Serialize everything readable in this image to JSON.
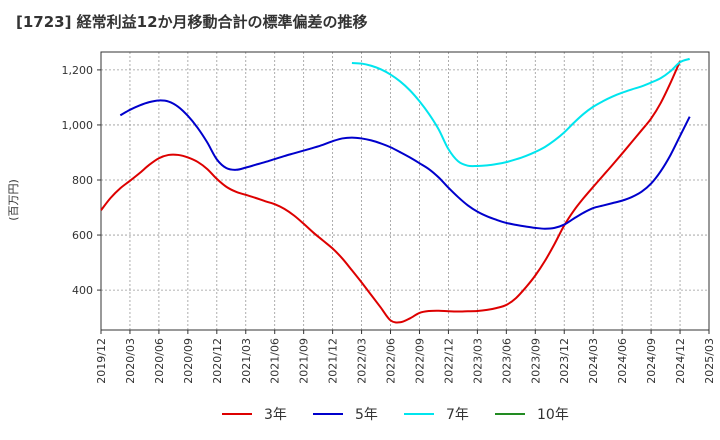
{
  "chart_data": {
    "type": "line",
    "title": "[1723]  経常利益12か月移動合計の標準偏差の推移",
    "ylabel": "(百万円)",
    "xlabel": "",
    "ylim": [
      255,
      1265
    ],
    "yticks": [
      400,
      600,
      800,
      1000,
      1200
    ],
    "ytick_labels": [
      "400",
      "600",
      "800",
      "1,000",
      "1,200"
    ],
    "xtick_labels": [
      "2019/12",
      "2020/03",
      "2020/06",
      "2020/09",
      "2020/12",
      "2021/03",
      "2021/06",
      "2021/09",
      "2021/12",
      "2022/03",
      "2022/06",
      "2022/09",
      "2022/12",
      "2023/03",
      "2023/06",
      "2023/09",
      "2023/12",
      "2024/03",
      "2024/06",
      "2024/09",
      "2024/12",
      "2025/03"
    ],
    "grid": true,
    "legend_position": "bottom",
    "series": [
      {
        "name": "3年",
        "color": "#dd0000",
        "values": [
          {
            "x": "2019/12",
            "y": 690
          },
          {
            "x": "2020/01",
            "y": 735
          },
          {
            "x": "2020/02",
            "y": 770
          },
          {
            "x": "2020/03",
            "y": 797
          },
          {
            "x": "2020/04",
            "y": 825
          },
          {
            "x": "2020/05",
            "y": 855
          },
          {
            "x": "2020/06",
            "y": 879
          },
          {
            "x": "2020/07",
            "y": 891
          },
          {
            "x": "2020/08",
            "y": 891
          },
          {
            "x": "2020/09",
            "y": 882
          },
          {
            "x": "2020/10",
            "y": 866
          },
          {
            "x": "2020/11",
            "y": 840
          },
          {
            "x": "2020/12",
            "y": 804
          },
          {
            "x": "2021/01",
            "y": 775
          },
          {
            "x": "2021/02",
            "y": 757
          },
          {
            "x": "2021/03",
            "y": 746
          },
          {
            "x": "2021/04",
            "y": 735
          },
          {
            "x": "2021/05",
            "y": 723
          },
          {
            "x": "2021/06",
            "y": 712
          },
          {
            "x": "2021/07",
            "y": 695
          },
          {
            "x": "2021/08",
            "y": 671
          },
          {
            "x": "2021/09",
            "y": 641
          },
          {
            "x": "2021/10",
            "y": 609
          },
          {
            "x": "2021/11",
            "y": 580
          },
          {
            "x": "2021/12",
            "y": 551
          },
          {
            "x": "2022/01",
            "y": 515
          },
          {
            "x": "2022/02",
            "y": 472
          },
          {
            "x": "2022/03",
            "y": 428
          },
          {
            "x": "2022/04",
            "y": 382
          },
          {
            "x": "2022/05",
            "y": 336
          },
          {
            "x": "2022/06",
            "y": 290
          },
          {
            "x": "2022/07",
            "y": 283
          },
          {
            "x": "2022/08",
            "y": 297
          },
          {
            "x": "2022/09",
            "y": 317
          },
          {
            "x": "2022/10",
            "y": 324
          },
          {
            "x": "2022/11",
            "y": 325
          },
          {
            "x": "2022/12",
            "y": 323
          },
          {
            "x": "2023/01",
            "y": 322
          },
          {
            "x": "2023/02",
            "y": 323
          },
          {
            "x": "2023/03",
            "y": 324
          },
          {
            "x": "2023/04",
            "y": 328
          },
          {
            "x": "2023/05",
            "y": 335
          },
          {
            "x": "2023/06",
            "y": 346
          },
          {
            "x": "2023/07",
            "y": 371
          },
          {
            "x": "2023/08",
            "y": 409
          },
          {
            "x": "2023/09",
            "y": 453
          },
          {
            "x": "2023/10",
            "y": 506
          },
          {
            "x": "2023/11",
            "y": 568
          },
          {
            "x": "2023/12",
            "y": 635
          },
          {
            "x": "2024/01",
            "y": 689
          },
          {
            "x": "2024/02",
            "y": 734
          },
          {
            "x": "2024/03",
            "y": 775
          },
          {
            "x": "2024/04",
            "y": 815
          },
          {
            "x": "2024/05",
            "y": 855
          },
          {
            "x": "2024/06",
            "y": 896
          },
          {
            "x": "2024/07",
            "y": 938
          },
          {
            "x": "2024/08",
            "y": 980
          },
          {
            "x": "2024/09",
            "y": 1023
          },
          {
            "x": "2024/10",
            "y": 1080
          },
          {
            "x": "2024/11",
            "y": 1152
          },
          {
            "x": "2024/12",
            "y": 1232
          }
        ]
      },
      {
        "name": "5年",
        "color": "#0000cc",
        "values": [
          {
            "x": "2020/02",
            "y": 1035
          },
          {
            "x": "2020/03",
            "y": 1055
          },
          {
            "x": "2020/04",
            "y": 1071
          },
          {
            "x": "2020/05",
            "y": 1083
          },
          {
            "x": "2020/06",
            "y": 1089
          },
          {
            "x": "2020/07",
            "y": 1085
          },
          {
            "x": "2020/08",
            "y": 1066
          },
          {
            "x": "2020/09",
            "y": 1033
          },
          {
            "x": "2020/10",
            "y": 990
          },
          {
            "x": "2020/11",
            "y": 937
          },
          {
            "x": "2020/12",
            "y": 875
          },
          {
            "x": "2021/01",
            "y": 843
          },
          {
            "x": "2021/02",
            "y": 837
          },
          {
            "x": "2021/03",
            "y": 845
          },
          {
            "x": "2021/04",
            "y": 855
          },
          {
            "x": "2021/05",
            "y": 865
          },
          {
            "x": "2021/06",
            "y": 876
          },
          {
            "x": "2021/07",
            "y": 887
          },
          {
            "x": "2021/08",
            "y": 897
          },
          {
            "x": "2021/09",
            "y": 907
          },
          {
            "x": "2021/10",
            "y": 917
          },
          {
            "x": "2021/11",
            "y": 928
          },
          {
            "x": "2021/12",
            "y": 941
          },
          {
            "x": "2022/01",
            "y": 951
          },
          {
            "x": "2022/02",
            "y": 954
          },
          {
            "x": "2022/03",
            "y": 951
          },
          {
            "x": "2022/04",
            "y": 944
          },
          {
            "x": "2022/05",
            "y": 933
          },
          {
            "x": "2022/06",
            "y": 919
          },
          {
            "x": "2022/07",
            "y": 901
          },
          {
            "x": "2022/08",
            "y": 882
          },
          {
            "x": "2022/09",
            "y": 861
          },
          {
            "x": "2022/10",
            "y": 839
          },
          {
            "x": "2022/11",
            "y": 809
          },
          {
            "x": "2022/12",
            "y": 772
          },
          {
            "x": "2023/01",
            "y": 738
          },
          {
            "x": "2023/02",
            "y": 708
          },
          {
            "x": "2023/03",
            "y": 685
          },
          {
            "x": "2023/04",
            "y": 668
          },
          {
            "x": "2023/05",
            "y": 655
          },
          {
            "x": "2023/06",
            "y": 644
          },
          {
            "x": "2023/07",
            "y": 637
          },
          {
            "x": "2023/08",
            "y": 631
          },
          {
            "x": "2023/09",
            "y": 626
          },
          {
            "x": "2023/10",
            "y": 623
          },
          {
            "x": "2023/11",
            "y": 626
          },
          {
            "x": "2023/12",
            "y": 638
          },
          {
            "x": "2024/01",
            "y": 660
          },
          {
            "x": "2024/02",
            "y": 681
          },
          {
            "x": "2024/03",
            "y": 698
          },
          {
            "x": "2024/04",
            "y": 707
          },
          {
            "x": "2024/05",
            "y": 716
          },
          {
            "x": "2024/06",
            "y": 725
          },
          {
            "x": "2024/07",
            "y": 738
          },
          {
            "x": "2024/08",
            "y": 757
          },
          {
            "x": "2024/09",
            "y": 787
          },
          {
            "x": "2024/10",
            "y": 832
          },
          {
            "x": "2024/11",
            "y": 890
          },
          {
            "x": "2024/12",
            "y": 960
          },
          {
            "x": "2025/01",
            "y": 1030
          }
        ]
      },
      {
        "name": "7年",
        "color": "#00e5ee",
        "values": [
          {
            "x": "2022/02",
            "y": 1225
          },
          {
            "x": "2022/03",
            "y": 1223
          },
          {
            "x": "2022/04",
            "y": 1215
          },
          {
            "x": "2022/05",
            "y": 1202
          },
          {
            "x": "2022/06",
            "y": 1183
          },
          {
            "x": "2022/07",
            "y": 1158
          },
          {
            "x": "2022/08",
            "y": 1126
          },
          {
            "x": "2022/09",
            "y": 1086
          },
          {
            "x": "2022/10",
            "y": 1039
          },
          {
            "x": "2022/11",
            "y": 983
          },
          {
            "x": "2022/12",
            "y": 912
          },
          {
            "x": "2023/01",
            "y": 868
          },
          {
            "x": "2023/02",
            "y": 852
          },
          {
            "x": "2023/03",
            "y": 851
          },
          {
            "x": "2023/04",
            "y": 853
          },
          {
            "x": "2023/05",
            "y": 858
          },
          {
            "x": "2023/06",
            "y": 865
          },
          {
            "x": "2023/07",
            "y": 875
          },
          {
            "x": "2023/08",
            "y": 887
          },
          {
            "x": "2023/09",
            "y": 902
          },
          {
            "x": "2023/10",
            "y": 920
          },
          {
            "x": "2023/11",
            "y": 944
          },
          {
            "x": "2023/12",
            "y": 973
          },
          {
            "x": "2024/01",
            "y": 1008
          },
          {
            "x": "2024/02",
            "y": 1040
          },
          {
            "x": "2024/03",
            "y": 1066
          },
          {
            "x": "2024/04",
            "y": 1086
          },
          {
            "x": "2024/05",
            "y": 1103
          },
          {
            "x": "2024/06",
            "y": 1117
          },
          {
            "x": "2024/07",
            "y": 1129
          },
          {
            "x": "2024/08",
            "y": 1140
          },
          {
            "x": "2024/09",
            "y": 1154
          },
          {
            "x": "2024/10",
            "y": 1170
          },
          {
            "x": "2024/11",
            "y": 1195
          },
          {
            "x": "2024/12",
            "y": 1228
          },
          {
            "x": "2025/01",
            "y": 1240
          }
        ]
      },
      {
        "name": "10年",
        "color": "#228b22",
        "values": []
      }
    ]
  }
}
